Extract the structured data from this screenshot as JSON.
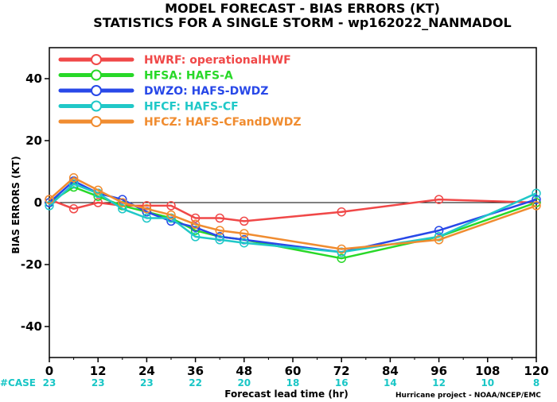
{
  "chart_data": {
    "type": "line",
    "title": "MODEL FORECAST - BIAS ERRORS (KT)",
    "subtitle": "STATISTICS FOR A SINGLE STORM - wp162022_NANMADOL",
    "xlabel": "Forecast lead time (hr)",
    "ylabel": "BIAS ERRORS (KT)",
    "xlim": [
      0,
      120
    ],
    "ylim": [
      -50,
      50
    ],
    "x_ticks": [
      "0",
      "12",
      "24",
      "36",
      "48",
      "60",
      "72",
      "84",
      "96",
      "108",
      "120"
    ],
    "y_ticks": [
      "-40",
      "-20",
      "0",
      "20",
      "40"
    ],
    "case_label": "#CASE",
    "case_counts": [
      "23",
      "23",
      "23",
      "22",
      "20",
      "18",
      "16",
      "14",
      "12",
      "10",
      "8"
    ],
    "credit": "Hurricane project - NOAA/NCEP/EMC",
    "legend_position": "top-left",
    "zero_line": true,
    "series": [
      {
        "name": "HWRF: operationalHWF",
        "color": "#f04848",
        "points": [
          [
            0,
            1
          ],
          [
            6,
            -2
          ],
          [
            12,
            0
          ],
          [
            18,
            -1
          ],
          [
            24,
            -1
          ],
          [
            30,
            -1
          ],
          [
            36,
            -5
          ],
          [
            42,
            -5
          ],
          [
            48,
            -6
          ],
          [
            72,
            -3
          ],
          [
            96,
            1
          ],
          [
            120,
            0
          ]
        ]
      },
      {
        "name": "HFSA: HAFS-A",
        "color": "#28d828",
        "points": [
          [
            0,
            0
          ],
          [
            6,
            5
          ],
          [
            12,
            2
          ],
          [
            18,
            -1
          ],
          [
            24,
            -3
          ],
          [
            30,
            -5
          ],
          [
            36,
            -9
          ],
          [
            42,
            -11
          ],
          [
            48,
            -12
          ],
          [
            72,
            -18
          ],
          [
            96,
            -11
          ],
          [
            120,
            0
          ]
        ]
      },
      {
        "name": "DWZO: HAFS-DWDZ",
        "color": "#2848e8",
        "points": [
          [
            0,
            0
          ],
          [
            6,
            7
          ],
          [
            12,
            3
          ],
          [
            18,
            1
          ],
          [
            24,
            -3
          ],
          [
            30,
            -6
          ],
          [
            36,
            -8
          ],
          [
            42,
            -11
          ],
          [
            48,
            -12
          ],
          [
            72,
            -16
          ],
          [
            96,
            -9
          ],
          [
            120,
            1
          ]
        ]
      },
      {
        "name": "HFCF: HAFS-CF",
        "color": "#20c8c8",
        "points": [
          [
            0,
            -1
          ],
          [
            6,
            6
          ],
          [
            12,
            3
          ],
          [
            18,
            -2
          ],
          [
            24,
            -5
          ],
          [
            30,
            -5
          ],
          [
            36,
            -11
          ],
          [
            42,
            -12
          ],
          [
            48,
            -13
          ],
          [
            72,
            -16
          ],
          [
            96,
            -11
          ],
          [
            120,
            3
          ]
        ]
      },
      {
        "name": "HFCZ: HAFS-CFandDWDZ",
        "color": "#f08c30",
        "points": [
          [
            0,
            1
          ],
          [
            6,
            8
          ],
          [
            12,
            4
          ],
          [
            18,
            0
          ],
          [
            24,
            -2
          ],
          [
            30,
            -4
          ],
          [
            36,
            -7
          ],
          [
            42,
            -9
          ],
          [
            48,
            -10
          ],
          [
            72,
            -15
          ],
          [
            96,
            -12
          ],
          [
            120,
            -1
          ]
        ]
      }
    ]
  }
}
